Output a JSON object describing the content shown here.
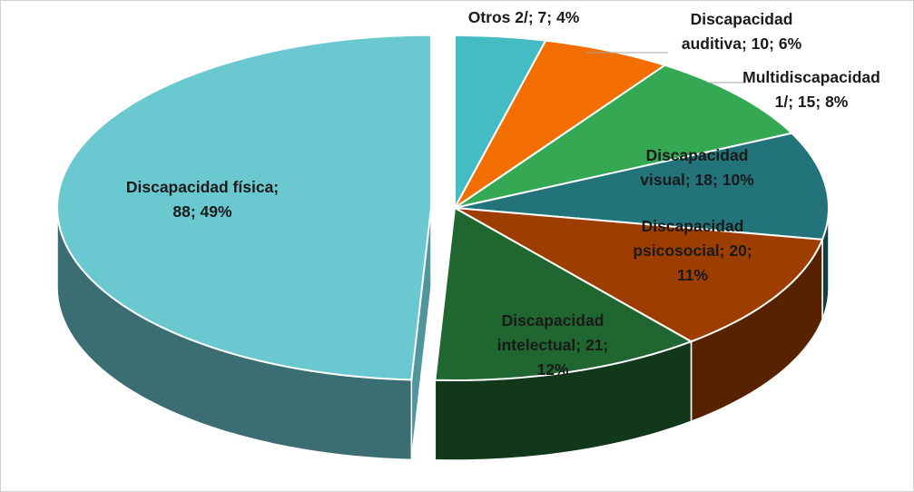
{
  "chart_data": {
    "type": "pie",
    "title": "",
    "three_d": true,
    "slices": [
      {
        "category": "Otros 2/",
        "value": 7,
        "percent": "4%",
        "label_lines": [
          "Otros 2/; 7; 4%"
        ],
        "color": "#45BCC4"
      },
      {
        "category": "Discapacidad auditiva",
        "value": 10,
        "percent": "6%",
        "label_lines": [
          "Discapacidad",
          "auditiva; 10; 6%"
        ],
        "color": "#F26E00"
      },
      {
        "category": "Multidiscapacidad 1/",
        "value": 15,
        "percent": "8%",
        "label_lines": [
          "Multidiscapacidad",
          "1/; 15; 8%"
        ],
        "color": "#34A853"
      },
      {
        "category": "Discapacidad visual",
        "value": 18,
        "percent": "10%",
        "label_lines": [
          "Discapacidad",
          "visual; 18; 10%"
        ],
        "color": "#23737B"
      },
      {
        "category": "Discapacidad psicosocial",
        "value": 20,
        "percent": "11%",
        "label_lines": [
          "Discapacidad",
          "psicosocial; 20;",
          "11%"
        ],
        "color": "#9E3D00"
      },
      {
        "category": "Discapacidad intelectual",
        "value": 21,
        "percent": "12%",
        "label_lines": [
          "Discapacidad",
          "intelectual; 21;",
          "12%"
        ],
        "color": "#1F6630"
      },
      {
        "category": "Discapacidad física",
        "value": 88,
        "percent": "49%",
        "label_lines": [
          "Discapacidad física;",
          "88; 49%"
        ],
        "color": "#6AC8D0"
      }
    ]
  }
}
